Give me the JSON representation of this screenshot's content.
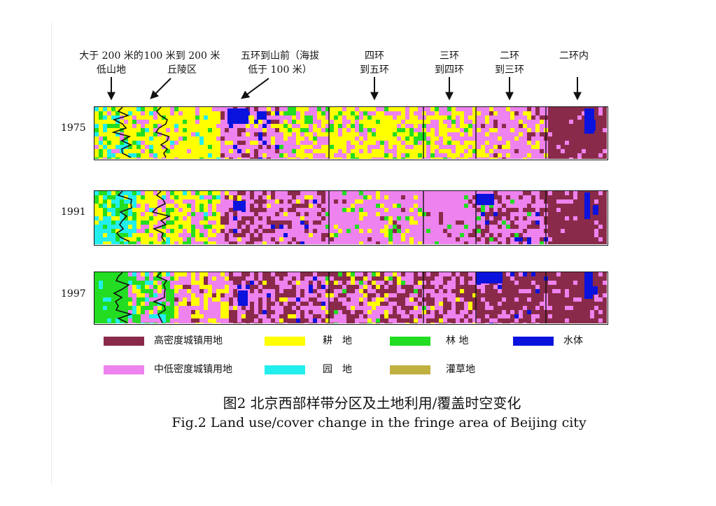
{
  "zones": [
    {
      "id": "low-hills",
      "lines": [
        "大于 200 米的",
        "低山地"
      ]
    },
    {
      "id": "hilly",
      "lines": [
        "100 米到 200 米",
        "丘陵区"
      ]
    },
    {
      "id": "ring5-to-mountain",
      "lines": [
        "五环到山前（海拔",
        "低于 100 米）"
      ]
    },
    {
      "id": "ring4-to-5",
      "lines": [
        "四环",
        "到五环"
      ]
    },
    {
      "id": "ring3-to-4",
      "lines": [
        "三环",
        "到四环"
      ]
    },
    {
      "id": "ring2-to-3",
      "lines": [
        "二环",
        "到三环"
      ]
    },
    {
      "id": "within-ring2",
      "lines": [
        "二环内"
      ]
    }
  ],
  "years": [
    "1975",
    "1991",
    "1997"
  ],
  "legend": [
    {
      "key": "high_urban",
      "label": "高密度城镇用地",
      "color": "#8a2a4a"
    },
    {
      "key": "farmland",
      "label": "耕　地",
      "color": "#ffff00"
    },
    {
      "key": "forest",
      "label": "林 地",
      "color": "#22dd22"
    },
    {
      "key": "water",
      "label": "水体",
      "color": "#0a12dd"
    },
    {
      "key": "mid_low_urban",
      "label": "中低密度城镇用地",
      "color": "#ee82ee"
    },
    {
      "key": "orchard",
      "label": "园　地",
      "color": "#22eeee"
    },
    {
      "key": "shrub_grass",
      "label": "灌草地",
      "color": "#c0b040"
    }
  ],
  "caption": {
    "cn": "图2 北京西部样带分区及土地利用/覆盖时空变化",
    "en": "Fig.2 Land use/cover change in the fringe area of Beijing city"
  }
}
